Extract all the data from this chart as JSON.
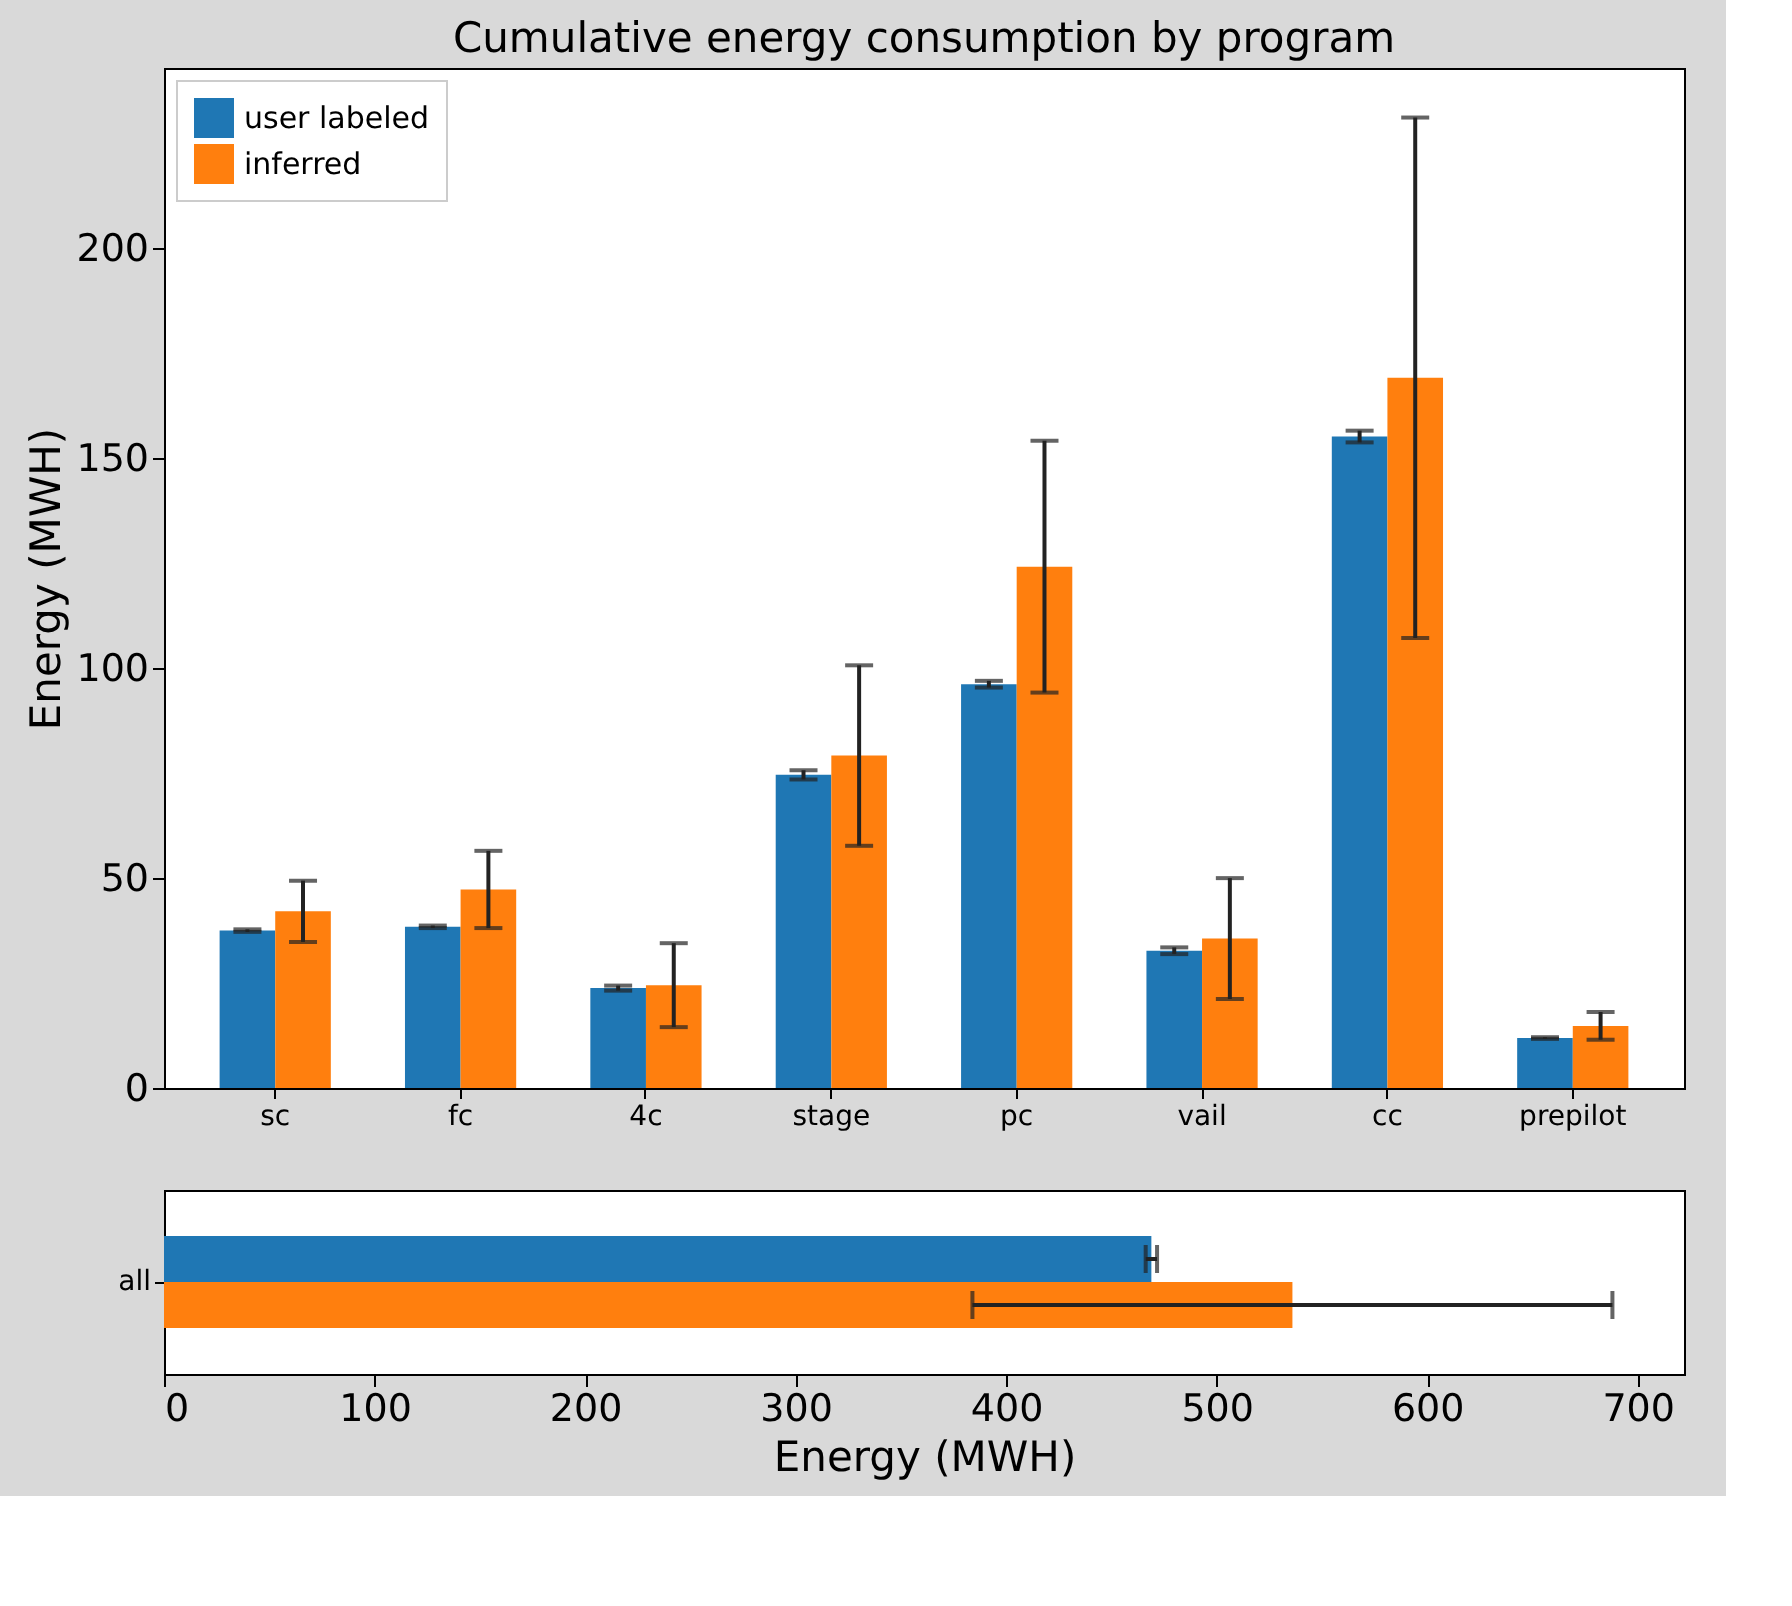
{
  "chart_data": [
    {
      "type": "bar",
      "title": "Cumulative energy consumption by program",
      "ylabel": "Energy (MWH)",
      "categories": [
        "sc",
        "fc",
        "4c",
        "stage",
        "pc",
        "vail",
        "cc",
        "prepilot"
      ],
      "series": [
        {
          "name": "user labeled",
          "color": "#1f77b4",
          "values": [
            37.5,
            38.4,
            23.8,
            74.6,
            96.2,
            32.7,
            155.2,
            11.9
          ],
          "errors": [
            0.3,
            0.3,
            0.6,
            1.1,
            0.8,
            0.8,
            1.4,
            0.2
          ]
        },
        {
          "name": "inferred",
          "color": "#ff7f0e",
          "values": [
            42.1,
            47.3,
            24.5,
            79.2,
            124.2,
            35.6,
            169.2,
            14.8
          ],
          "errors": [
            7.3,
            9.2,
            10,
            21.5,
            30,
            14.4,
            62,
            3.3
          ]
        }
      ],
      "ylim": [
        0,
        243
      ],
      "yticks": [
        0,
        50,
        100,
        150,
        200
      ],
      "grid": false,
      "legend": "top left"
    },
    {
      "type": "bar",
      "orientation": "horizontal",
      "xlabel": "Energy (MWH)",
      "categories": [
        "all"
      ],
      "series": [
        {
          "color": "#1f77b4",
          "values": [
            469
          ],
          "errors": [
            2.7
          ]
        },
        {
          "color": "#ff7f0e",
          "values": [
            536
          ],
          "errors": [
            152
          ]
        }
      ],
      "xlim": [
        0,
        722
      ],
      "xticks": [
        0,
        100,
        200,
        300,
        400,
        500,
        600,
        700
      ],
      "grid": false,
      "legend": false
    }
  ]
}
